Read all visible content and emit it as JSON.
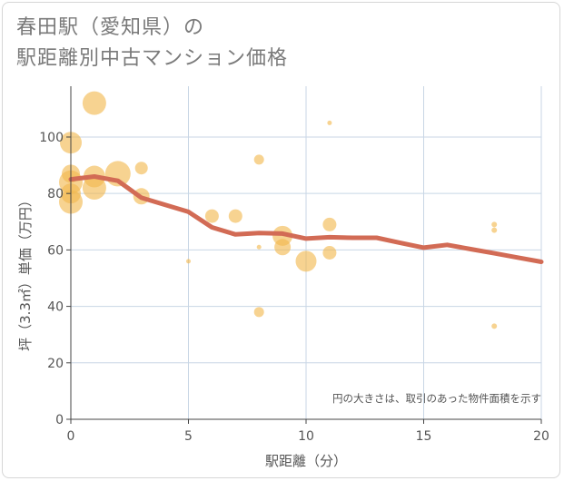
{
  "page": {
    "title_line1": "春田駅（愛知県）の",
    "title_line2": "駅距離別中古マンション価格"
  },
  "chart_data": {
    "type": "scatter",
    "title": "春田駅（愛知県）の駅距離別中古マンション価格",
    "xlabel": "駅距離（分）",
    "ylabel": "坪（3.3㎡）単価（万円）",
    "xlim": [
      0,
      20
    ],
    "ylim": [
      0,
      118
    ],
    "xticks": [
      0,
      5,
      10,
      15,
      20
    ],
    "yticks": [
      0,
      20,
      40,
      60,
      80,
      100
    ],
    "grid": true,
    "annotation": "円の大きさは、取引のあった物件面積を示す",
    "bubble_color": "#f2b84e",
    "line_color": "#d26b55",
    "points": [
      {
        "x": 0,
        "y": 98,
        "size": 12
      },
      {
        "x": 0,
        "y": 87,
        "size": 10
      },
      {
        "x": 0,
        "y": 84,
        "size": 13
      },
      {
        "x": 0,
        "y": 80,
        "size": 11
      },
      {
        "x": 0,
        "y": 77,
        "size": 13
      },
      {
        "x": 1,
        "y": 112,
        "size": 13
      },
      {
        "x": 1,
        "y": 86,
        "size": 12
      },
      {
        "x": 1,
        "y": 82,
        "size": 13
      },
      {
        "x": 2,
        "y": 87,
        "size": 14
      },
      {
        "x": 3,
        "y": 89,
        "size": 7
      },
      {
        "x": 3,
        "y": 79,
        "size": 9
      },
      {
        "x": 5,
        "y": 56,
        "size": 2.5
      },
      {
        "x": 6,
        "y": 72,
        "size": 7.5
      },
      {
        "x": 7,
        "y": 72,
        "size": 7.5
      },
      {
        "x": 8,
        "y": 92,
        "size": 5.5
      },
      {
        "x": 8,
        "y": 61,
        "size": 2.5
      },
      {
        "x": 8,
        "y": 38,
        "size": 5.5
      },
      {
        "x": 9,
        "y": 65,
        "size": 11
      },
      {
        "x": 9,
        "y": 61,
        "size": 9
      },
      {
        "x": 10,
        "y": 56,
        "size": 11.5
      },
      {
        "x": 11,
        "y": 105,
        "size": 2.5
      },
      {
        "x": 11,
        "y": 69,
        "size": 7.5
      },
      {
        "x": 11,
        "y": 59,
        "size": 7.5
      },
      {
        "x": 18,
        "y": 69,
        "size": 3
      },
      {
        "x": 18,
        "y": 67,
        "size": 3
      },
      {
        "x": 18,
        "y": 33,
        "size": 3
      }
    ],
    "trend": {
      "x": [
        0,
        1,
        2,
        3,
        4,
        5,
        6,
        7,
        8,
        9,
        10,
        11,
        12,
        13,
        14,
        15,
        16,
        17,
        18,
        19,
        20
      ],
      "y": [
        85,
        86,
        84.5,
        78.5,
        76,
        73.5,
        68,
        65.5,
        66,
        65.8,
        64,
        64.5,
        64.3,
        64.3,
        62.5,
        60.8,
        61.8,
        60.3,
        58.8,
        57.3,
        55.8
      ]
    }
  }
}
